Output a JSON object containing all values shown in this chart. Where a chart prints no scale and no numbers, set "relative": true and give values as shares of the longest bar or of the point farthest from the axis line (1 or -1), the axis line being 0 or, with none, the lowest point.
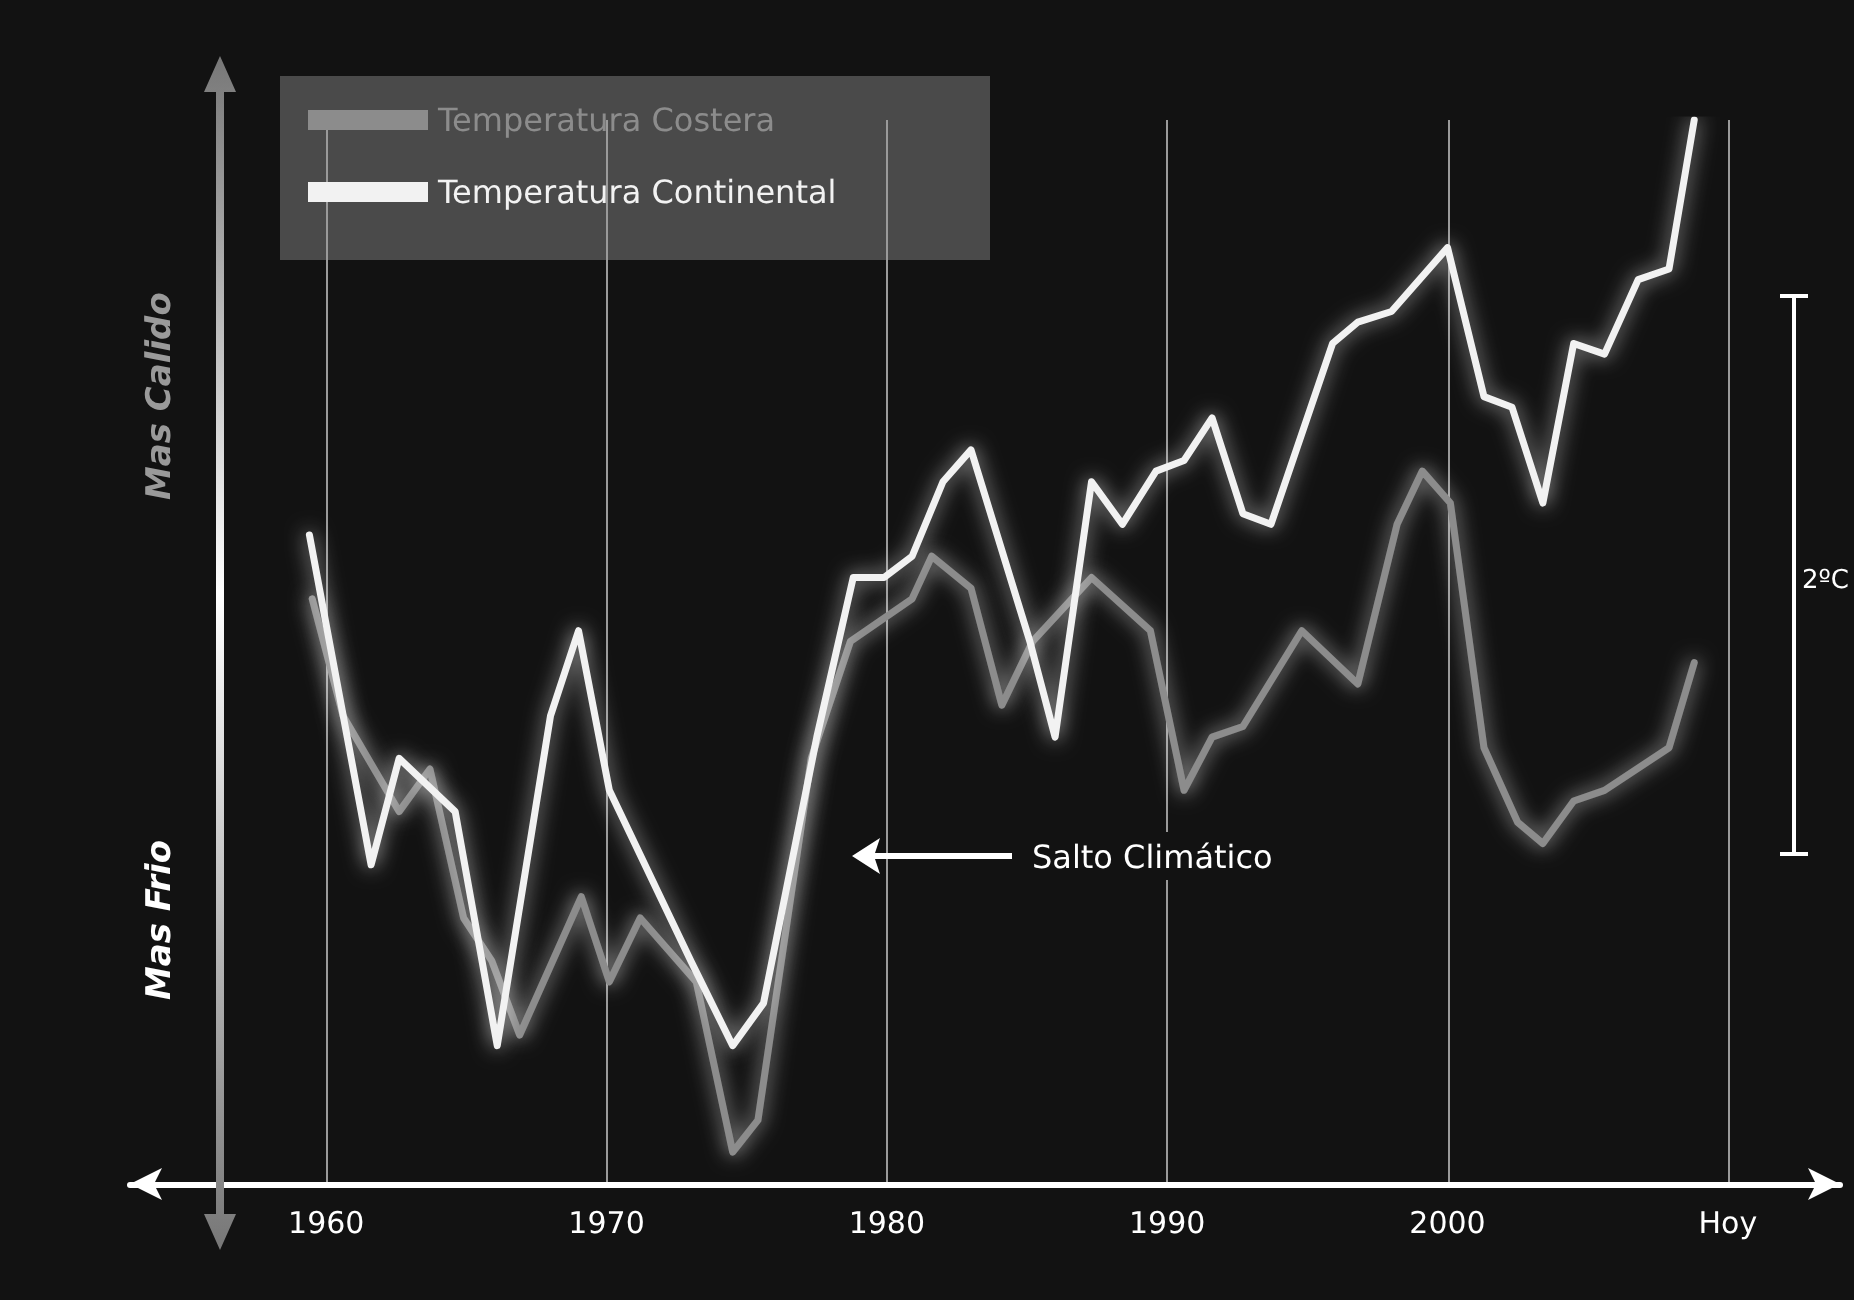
{
  "chart_data": {
    "type": "line",
    "relative": true,
    "xlim": [
      1953,
      2014
    ],
    "xticks": [
      1960,
      1970,
      1980,
      1990,
      2000,
      {
        "value": 2010,
        "label": "Hoy"
      }
    ],
    "grid": "x",
    "legend": "top left",
    "marker": "none",
    "line_style": "solid",
    "annotations": [
      "Mas Calido",
      "Mas Frio",
      "Salto Climático",
      "2ºC"
    ],
    "series": [
      {
        "name": "Temperatura Costera",
        "color": "#8c8c8c",
        "x": [
          1959.5,
          1960.6,
          1962.6,
          1963.7,
          1964.9,
          1965.9,
          1966.9,
          1969.1,
          1970.1,
          1971.2,
          1973.2,
          1974.5,
          1975.4,
          1977.3,
          1978.7,
          1980.9,
          1981.6,
          1983,
          1984.1,
          1985.2,
          1987.3,
          1989.4,
          1990.6,
          1991.6,
          1992.7,
          1994.8,
          1996.8,
          1998.2,
          1999.1,
          2000.1,
          2001.3,
          2002.5,
          2003.4,
          2004.5,
          2005.6,
          2007.9,
          2008.8
        ],
        "values": [
          0.55,
          0.44,
          0.35,
          0.39,
          0.25,
          0.21,
          0.14,
          0.27,
          0.19,
          0.25,
          0.19,
          0.03,
          0.06,
          0.4,
          0.51,
          0.55,
          0.59,
          0.56,
          0.45,
          0.51,
          0.57,
          0.52,
          0.37,
          0.42,
          0.43,
          0.52,
          0.47,
          0.62,
          0.67,
          0.64,
          0.41,
          0.34,
          0.32,
          0.36,
          0.37,
          0.41,
          0.49
        ]
      },
      {
        "name": "Temperatura Continental",
        "color": "#f2f2f2",
        "x": [
          1959.4,
          1961.6,
          1962.6,
          1964.6,
          1966.1,
          1968,
          1969,
          1970.1,
          1973,
          1974.5,
          1975.6,
          1977.5,
          1978.8,
          1979.9,
          1980.9,
          1982,
          1983,
          1985.1,
          1986,
          1987.3,
          1988.4,
          1989.6,
          1990.6,
          1991.6,
          1992.7,
          1993.7,
          1995.9,
          1996.8,
          1998,
          2000,
          2001.3,
          2002.3,
          2003.4,
          2004.5,
          2005.6,
          2006.8,
          2007.9,
          2008.8
        ],
        "values": [
          0.61,
          0.3,
          0.4,
          0.35,
          0.13,
          0.44,
          0.52,
          0.37,
          0.21,
          0.13,
          0.17,
          0.42,
          0.57,
          0.57,
          0.59,
          0.66,
          0.69,
          0.51,
          0.42,
          0.66,
          0.62,
          0.67,
          0.68,
          0.72,
          0.63,
          0.62,
          0.79,
          0.81,
          0.82,
          0.88,
          0.74,
          0.73,
          0.64,
          0.79,
          0.78,
          0.85,
          0.86,
          1
        ]
      }
    ]
  }
}
